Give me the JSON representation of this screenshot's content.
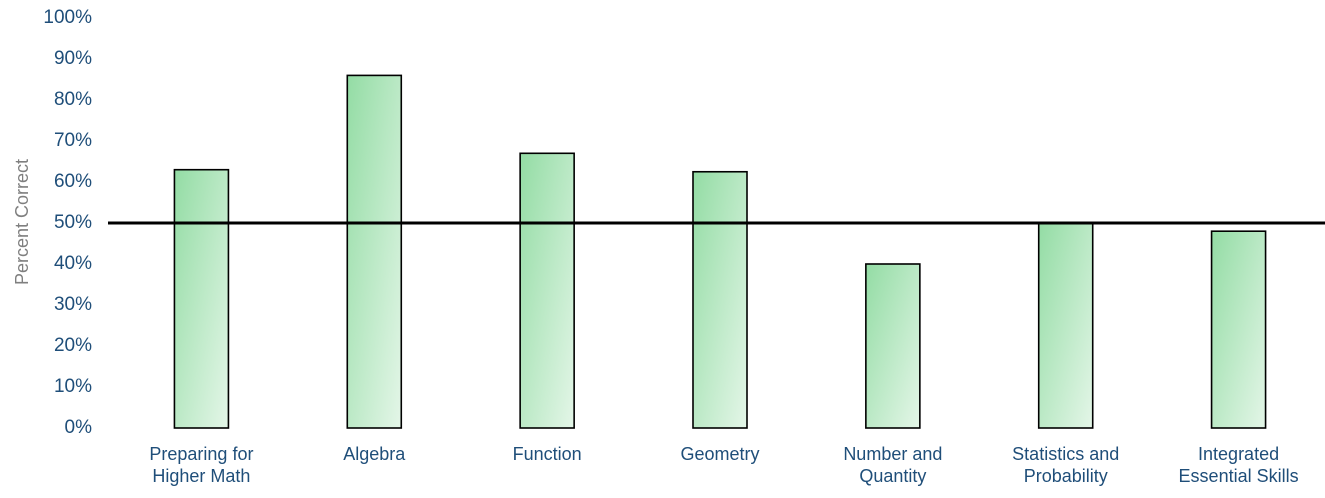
{
  "chart_data": {
    "type": "bar",
    "title": "",
    "xlabel": "",
    "ylabel": "Percent Correct",
    "categories": [
      [
        "Preparing for",
        "Higher Math"
      ],
      [
        "Algebra"
      ],
      [
        "Function"
      ],
      [
        "Geometry"
      ],
      [
        "Number and",
        "Quantity"
      ],
      [
        "Statistics and",
        "Probability"
      ],
      [
        "Integrated",
        "Essential Skills"
      ]
    ],
    "values": [
      63,
      86,
      67,
      62.5,
      40,
      50,
      48
    ],
    "ylim": [
      0,
      100
    ],
    "yticks": [
      0,
      10,
      20,
      30,
      40,
      50,
      60,
      70,
      80,
      90,
      100
    ],
    "ytick_suffix": "%",
    "reference_line": 50,
    "grid": false,
    "legend": "none",
    "colors": {
      "bar_fill_start": "#93dca4",
      "bar_fill_end": "#e4f6e8",
      "bar_stroke": "#000000",
      "tick_text": "#1f4e79",
      "ylabel_text": "#7f7f7f",
      "reference_line": "#000000"
    }
  }
}
